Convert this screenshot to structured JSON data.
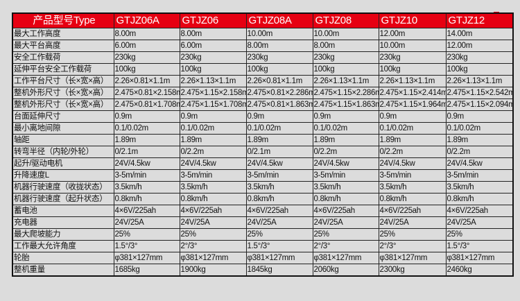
{
  "header": [
    "产品型号Type",
    "GTJZ06A",
    "GTJZ06",
    "GTJZ08A",
    "GTJZ08",
    "GTJZ10",
    "GTJZ12"
  ],
  "rows": [
    [
      "最大工作高度",
      "8.00m",
      "8.00m",
      "10.00m",
      "10.00m",
      "12.00m",
      "14.00m"
    ],
    [
      "最大平台高度",
      "6.00m",
      "6.00m",
      "8.00m",
      "8.00m",
      "10.00m",
      "12.00m"
    ],
    [
      "安全工作载荷",
      "230kg",
      "230kg",
      "230kg",
      "230kg",
      "230kg",
      "230kg"
    ],
    [
      "延伸平台安全工作载荷",
      "100kg",
      "100kg",
      "100kg",
      "100kg",
      "100kg",
      "100kg"
    ],
    [
      "工作平台尺寸（长×宽×高）",
      "2.26×0.81×1.1m",
      "2.26×1.13×1.1m",
      "2.26×0.81×1.1m",
      "2.26×1.13×1.1m",
      "2.26×1.13×1.1m",
      "2.26×1.13×1.1m"
    ],
    [
      "整机外形尺寸（长×宽×高）",
      "2.475×0.81×2.158m",
      "2.475×1.15×2.158m",
      "2.475×0.81×2.286m",
      "2.475×1.15×2.286m",
      "2.475×1.15×2.414m",
      "2.475×1.15×2.542m"
    ],
    [
      "整机外形尺寸（长×宽×高）",
      "2.475×0.81×1.708m",
      "2.475×1.15×1.708m",
      "2.475×0.81×1.863m",
      "2.475×1.15×1.863m",
      "2.475×1.15×1.964m",
      "2.475×1.15×2.094m"
    ],
    [
      "台面延伸尺寸",
      "0.9m",
      "0.9m",
      "0.9m",
      "0.9m",
      "0.9m",
      "0.9m"
    ],
    [
      "最小离地间隙",
      "0.1/0.02m",
      "0.1/0.02m",
      "0.1/0.02m",
      "0.1/0.02m",
      "0.1/0.02m",
      "0.1/0.02m"
    ],
    [
      "轴距",
      "1.89m",
      "1.89m",
      "1.89m",
      "1.89m",
      "1.89m",
      "1.89m"
    ],
    [
      "转弯半径（内轮/外轮）",
      "0/2.1m",
      "0/2.2m",
      "0/2.1m",
      "0/2.2m",
      "0/2.2m",
      "0/2.2m"
    ],
    [
      "起升/驱动电机",
      "24V/4.5kw",
      "24V/4.5kw",
      "24V/4.5kw",
      "24V/4.5kw",
      "24V/4.5kw",
      "24V/4.5kw"
    ],
    [
      "升降速度L",
      "3-5m/min",
      "3-5m/min",
      "3-5m/min",
      "3-5m/min",
      "3-5m/min",
      "3-5m/min"
    ],
    [
      "机器行驶速度（收拢状态）",
      "3.5km/h",
      "3.5km/h",
      "3.5km/h",
      "3.5km/h",
      "3.5km/h",
      "3.5km/h"
    ],
    [
      "机器行驶速度（起升状态）",
      "0.8km/h",
      "0.8km/h",
      "0.8km/h",
      "0.8km/h",
      "0.8km/h",
      "0.8km/h"
    ],
    [
      "蓄电池",
      "4×6V/225ah",
      "4×6V/225ah",
      "4×6V/225ah",
      "4×6V/225ah",
      "4×6V/225ah",
      "4×6V/225ah"
    ],
    [
      "充电器",
      "24V/25A",
      "24V/25A",
      "24V/25A",
      "24V/25A",
      "24V/25A",
      "24V/25A"
    ],
    [
      "最大爬坡能力",
      "25%",
      "25%",
      "25%",
      "25%",
      "25%",
      "25%"
    ],
    [
      "工作最大允许角度",
      "1.5°/3°",
      "2°/3°",
      "1.5°/3°",
      "2°/3°",
      "2°/3°",
      "1.5°/3°"
    ],
    [
      "轮胎",
      "φ381×127mm",
      "φ381×127mm",
      "φ381×127mm",
      "φ381×127mm",
      "φ381×127mm",
      "φ381×127mm"
    ],
    [
      "整机重量",
      "1685kg",
      "1900kg",
      "1845kg",
      "2060kg",
      "2300kg",
      "2460kg"
    ]
  ],
  "colors": {
    "header_bg": "#e60012",
    "background": "#dcdcdc"
  }
}
